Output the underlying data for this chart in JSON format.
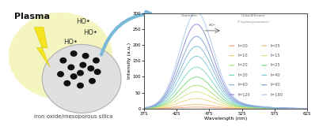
{
  "background_color": "#ffffff",
  "left_panel": {
    "plasma_text": "Plasma",
    "ho_labels": [
      "HO•",
      "HO•",
      "HO•"
    ],
    "particle_label": "iron oxide/mesoporous silica",
    "glow_color": "#f5f5c0",
    "sphere_color": "#e0e0e0",
    "sphere_edge_color": "#b0b0b0",
    "lightning_color": "#f5e520",
    "lightning_edge": "#d4c400",
    "dot_color": "#111111",
    "plasma_fontsize": 8,
    "ho_fontsize": 6,
    "label_fontsize": 5
  },
  "arrow": {
    "color": "#7ab8d8",
    "linewidth": 3.0
  },
  "spectrum": {
    "wavelength_min": 375,
    "wavelength_max": 625,
    "peak_wavelength": 455,
    "peak_sigma": 25,
    "y_max": 300,
    "xlabel": "Wavelength (nm)",
    "ylabel": "Intensity (a.u.)",
    "x_ticks": [
      375,
      425,
      475,
      525,
      575,
      625
    ],
    "y_ticks": [
      0,
      50,
      100,
      150,
      200,
      250,
      300
    ],
    "time_labels_col1": [
      "t=00",
      "t=10",
      "t=20",
      "t=30",
      "t=60",
      "t=120"
    ],
    "time_labels_col2": [
      "t=05",
      "t=15",
      "t=25",
      "t=40",
      "t=90",
      "t=180"
    ],
    "peak_heights": [
      4,
      12,
      30,
      50,
      70,
      95,
      125,
      158,
      188,
      218,
      255,
      292
    ],
    "colors": [
      "#f2a07a",
      "#f5bb7a",
      "#f0d27a",
      "#d2e67a",
      "#a6de7a",
      "#7bd67a",
      "#7bd5be",
      "#7dcad6",
      "#7db5d6",
      "#7d9ed6",
      "#8888d0",
      "#aac8ec"
    ]
  }
}
